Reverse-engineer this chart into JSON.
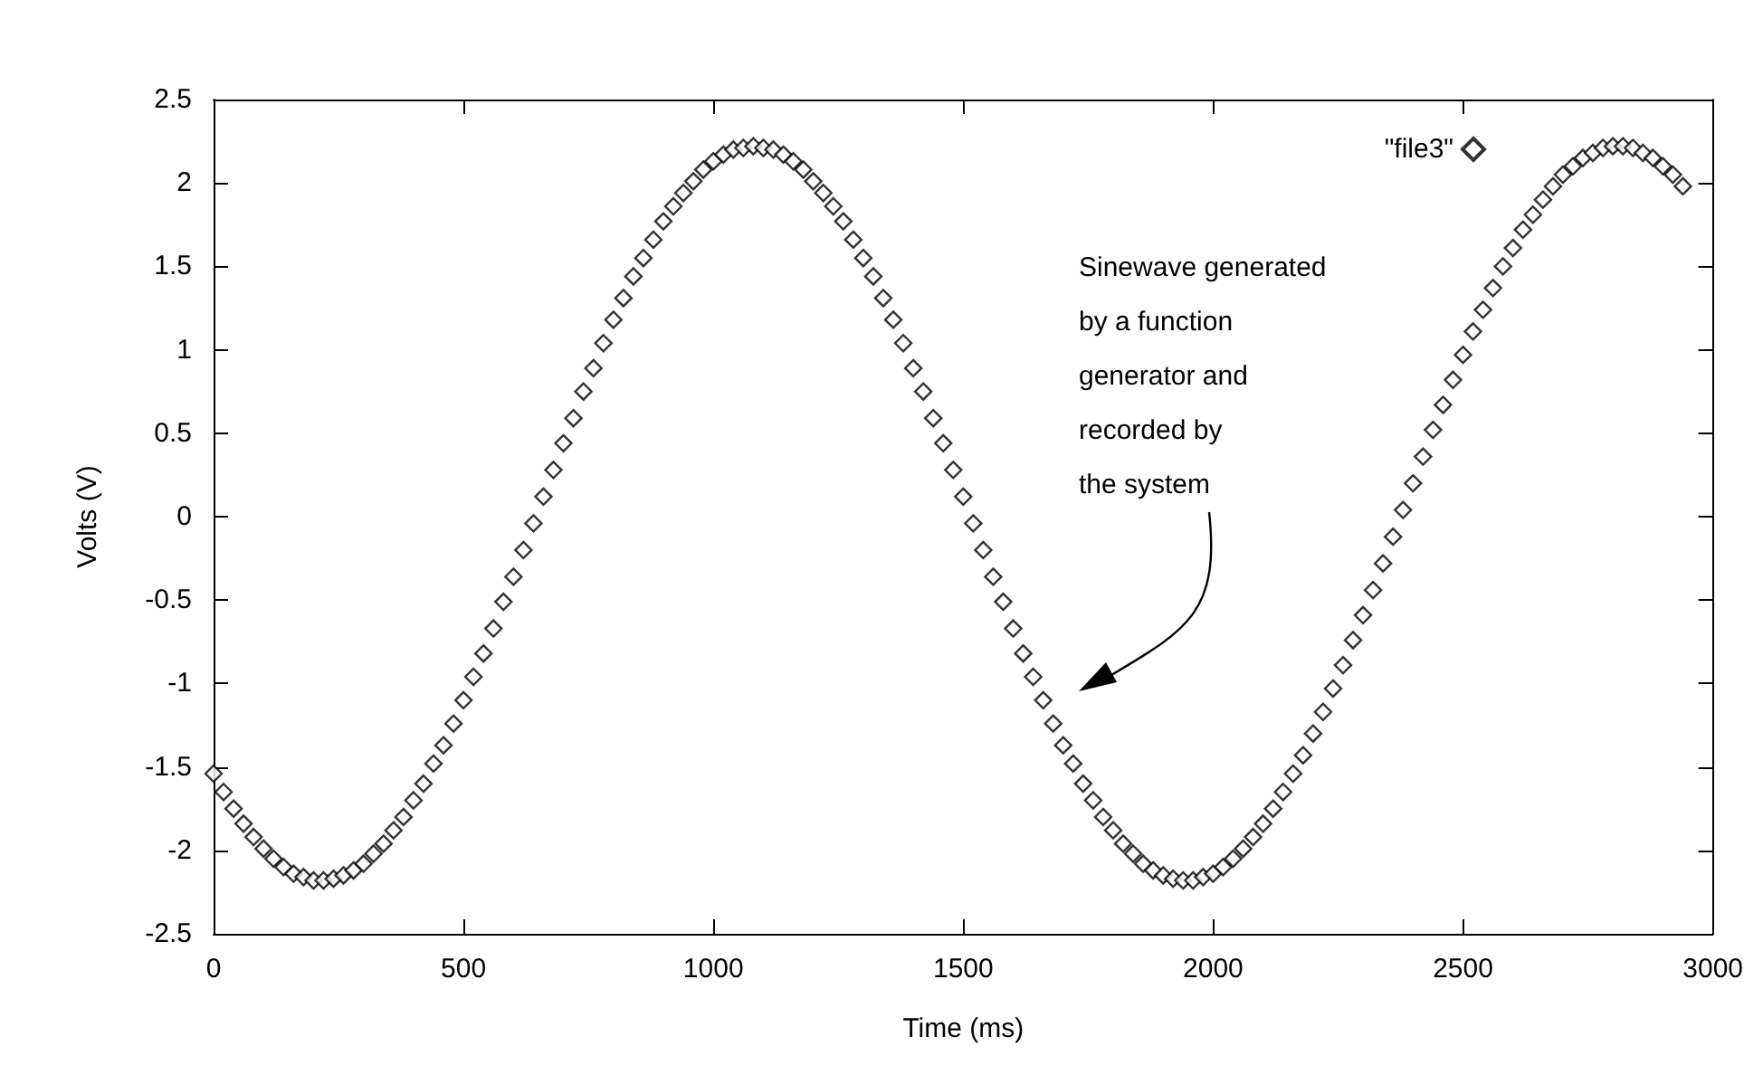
{
  "chart_data": {
    "type": "scatter",
    "xlabel": "Time (ms)",
    "ylabel": "Volts (V)",
    "xlim": [
      0,
      3000
    ],
    "xticks": [
      0,
      500,
      1000,
      1500,
      2000,
      2500,
      3000
    ],
    "ylim": [
      -2.5,
      2.5
    ],
    "yticks": [
      -2.5,
      -2,
      -1.5,
      -1,
      -0.5,
      0,
      0.5,
      1,
      1.5,
      2,
      2.5
    ],
    "grid": false,
    "legend": "top right",
    "marker": "diamond",
    "annotations": [
      "Sinewave generated\nby a function\ngenerator and\nrecorded by\nthe system"
    ],
    "series": [
      {
        "name": "\"file3\"",
        "color": "#000000",
        "x": [
          0,
          20,
          40,
          60,
          80,
          100,
          120,
          140,
          160,
          180,
          200,
          220,
          240,
          260,
          280,
          300,
          320,
          340,
          360,
          380,
          400,
          420,
          440,
          460,
          480,
          500,
          520,
          540,
          560,
          580,
          600,
          620,
          640,
          660,
          680,
          700,
          720,
          740,
          760,
          780,
          800,
          820,
          840,
          860,
          880,
          900,
          920,
          940,
          960,
          980,
          1000,
          1020,
          1040,
          1060,
          1080,
          1100,
          1120,
          1140,
          1160,
          1180,
          1200,
          1220,
          1240,
          1260,
          1280,
          1300,
          1320,
          1340,
          1360,
          1380,
          1400,
          1420,
          1440,
          1460,
          1480,
          1500,
          1520,
          1540,
          1560,
          1580,
          1600,
          1620,
          1640,
          1660,
          1680,
          1700,
          1720,
          1740,
          1760,
          1780,
          1800,
          1820,
          1840,
          1860,
          1880,
          1900,
          1920,
          1940,
          1960,
          1980,
          2000,
          2020,
          2040,
          2060,
          2080,
          2100,
          2120,
          2140,
          2160,
          2180,
          2200,
          2220,
          2240,
          2260,
          2280,
          2300,
          2320,
          2340,
          2360,
          2380,
          2400,
          2420,
          2440,
          2460,
          2480,
          2500,
          2520,
          2540,
          2560,
          2580,
          2600,
          2620,
          2640,
          2660,
          2680,
          2700,
          2720,
          2740,
          2760,
          2780,
          2800,
          2820,
          2840,
          2860,
          2880,
          2900,
          2920,
          2940
        ],
        "values": [
          -1.54,
          -1.65,
          -1.75,
          -1.84,
          -1.92,
          -1.99,
          -2.05,
          -2.1,
          -2.14,
          -2.16,
          -2.18,
          -2.18,
          -2.17,
          -2.15,
          -2.12,
          -2.08,
          -2.02,
          -1.96,
          -1.88,
          -1.8,
          -1.7,
          -1.6,
          -1.48,
          -1.37,
          -1.24,
          -1.1,
          -0.96,
          -0.82,
          -0.67,
          -0.51,
          -0.36,
          -0.2,
          -0.04,
          0.12,
          0.28,
          0.44,
          0.59,
          0.75,
          0.89,
          1.04,
          1.18,
          1.31,
          1.44,
          1.55,
          1.66,
          1.77,
          1.86,
          1.94,
          2.01,
          2.08,
          2.13,
          2.17,
          2.2,
          2.21,
          2.22,
          2.21,
          2.2,
          2.17,
          2.13,
          2.08,
          2.01,
          1.94,
          1.86,
          1.77,
          1.66,
          1.55,
          1.44,
          1.31,
          1.18,
          1.04,
          0.89,
          0.75,
          0.59,
          0.44,
          0.28,
          0.12,
          -0.04,
          -0.2,
          -0.36,
          -0.51,
          -0.67,
          -0.82,
          -0.96,
          -1.1,
          -1.24,
          -1.37,
          -1.48,
          -1.6,
          -1.7,
          -1.8,
          -1.88,
          -1.96,
          -2.02,
          -2.08,
          -2.12,
          -2.15,
          -2.17,
          -2.18,
          -2.18,
          -2.16,
          -2.14,
          -2.1,
          -2.05,
          -1.99,
          -1.92,
          -1.84,
          -1.75,
          -1.65,
          -1.54,
          -1.43,
          -1.3,
          -1.17,
          -1.03,
          -0.89,
          -0.74,
          -0.59,
          -0.44,
          -0.28,
          -0.12,
          0.04,
          0.2,
          0.36,
          0.52,
          0.67,
          0.82,
          0.97,
          1.11,
          1.24,
          1.37,
          1.5,
          1.61,
          1.72,
          1.81,
          1.9,
          1.98,
          2.05,
          2.1,
          2.15,
          2.18,
          2.21,
          2.22,
          2.22,
          2.21,
          2.18,
          2.15,
          2.1,
          2.05,
          1.98
        ]
      }
    ]
  }
}
